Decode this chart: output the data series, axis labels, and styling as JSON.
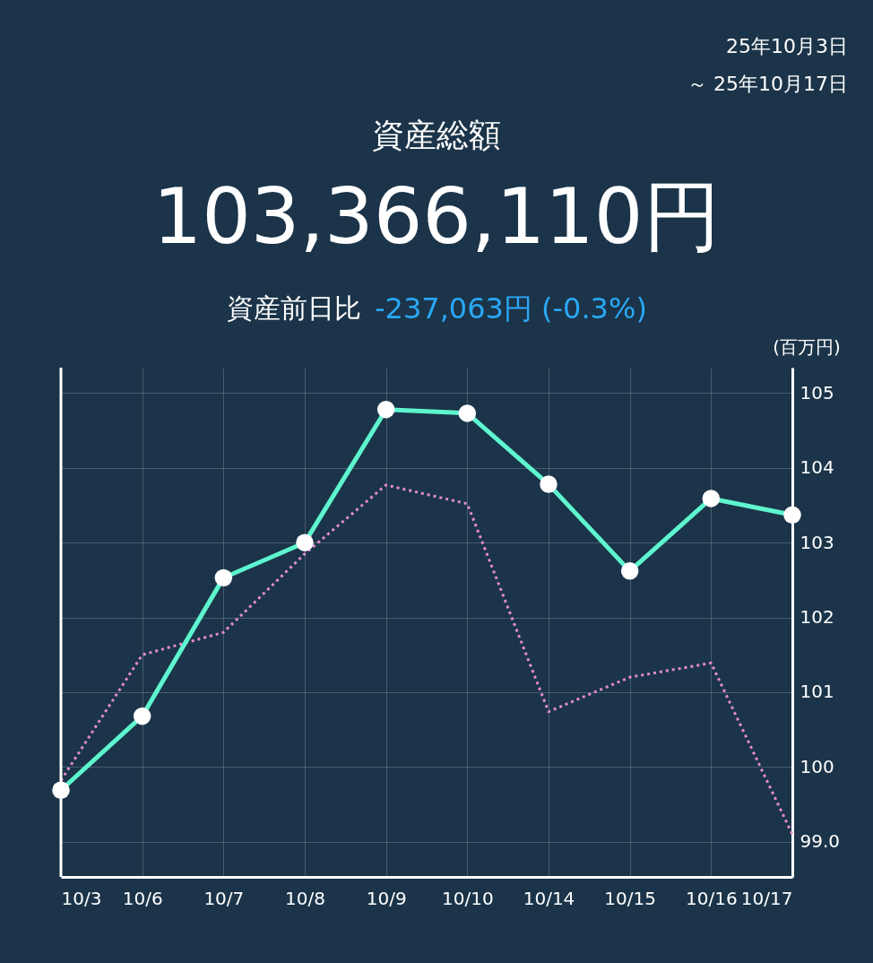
{
  "chart_data": {
    "type": "line",
    "title": "資産総額",
    "subtitle": "103,366,110円",
    "ylabel": "(百万円)",
    "annotations": [
      "25年10月3日",
      "～ 25年10月17日",
      "資産前日比",
      "-237,063円 (-0.3%)"
    ],
    "categories": [
      "10/3",
      "10/6",
      "10/7",
      "10/8",
      "10/9",
      "10/10",
      "10/14",
      "10/15",
      "10/16",
      "10/17"
    ],
    "series": [
      {
        "color": "#e58ccb",
        "line_style": "dotted",
        "marker": "none",
        "values": [
          99.82,
          101.5,
          101.8,
          102.85,
          103.77,
          103.52,
          100.74,
          101.2,
          101.39,
          99.1
        ]
      },
      {
        "color": "#5ef5cf",
        "line_style": "solid",
        "marker": "circle",
        "values": [
          99.69,
          100.68,
          102.53,
          103.0,
          104.78,
          104.73,
          103.78,
          102.62,
          103.59,
          103.37
        ]
      }
    ],
    "ylim": [
      98.53,
      105.34
    ],
    "yticks": [
      {
        "value": 99,
        "label": "99.0"
      },
      100,
      101,
      102,
      103,
      104,
      105
    ],
    "grid": true
  }
}
